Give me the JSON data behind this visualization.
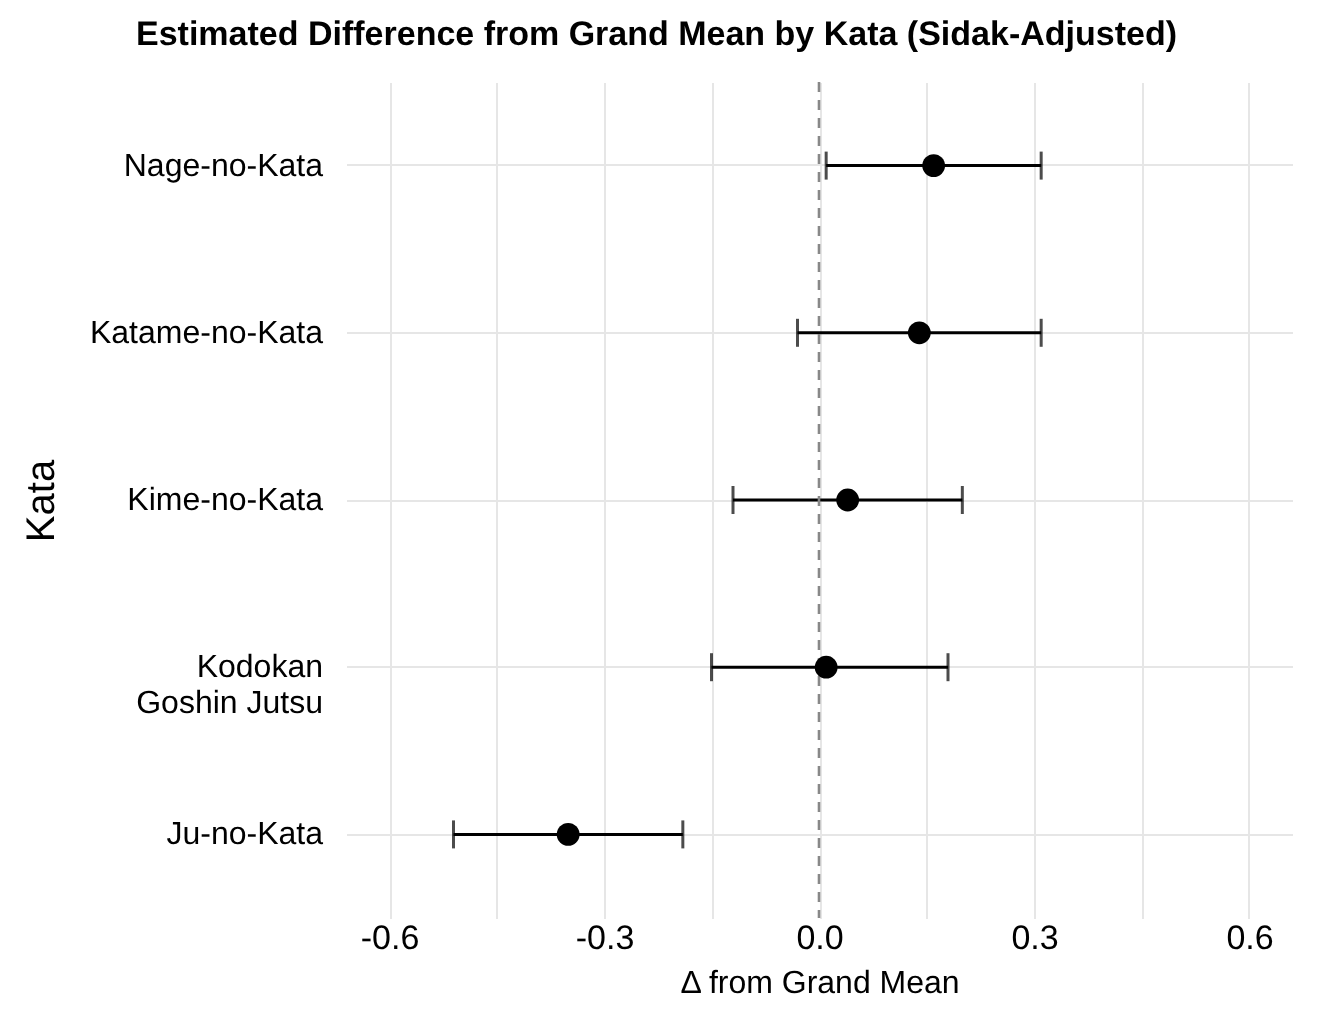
{
  "chart_data": {
    "type": "scatter",
    "title": "Estimated Difference from Grand Mean by Kata (Sidak-Adjusted)",
    "xlabel": "Δ from Grand Mean",
    "ylabel": "Kata",
    "orientation": "horizontal",
    "categories": [
      "Nage-no-Kata",
      "Katame-no-Kata",
      "Kime-no-Kata",
      "Kodokan Goshin Jutsu",
      "Ju-no-Kata"
    ],
    "series": [
      {
        "color": "#000000",
        "values": [
          0.16,
          0.14,
          0.04,
          0.01,
          -0.35
        ],
        "errors": [
          [
            0.01,
            0.31
          ],
          [
            -0.03,
            0.31
          ],
          [
            -0.12,
            0.2
          ],
          [
            -0.15,
            0.18
          ],
          [
            -0.51,
            -0.19
          ]
        ]
      }
    ],
    "xlim": [
      -0.66,
      0.66
    ],
    "xticks": [
      -0.6,
      {
        "value": -0.45,
        "label": null
      },
      -0.3,
      {
        "value": -0.15,
        "label": null
      },
      {
        "value": 0,
        "label": "0.0"
      },
      {
        "value": 0.15,
        "label": null
      },
      0.3,
      {
        "value": 0.45,
        "label": null
      },
      0.6
    ],
    "grid": true,
    "marker": "circle",
    "ref_lines": [
      {
        "axis": "x",
        "value": 0,
        "line_style": "dashed",
        "color": "#888888"
      }
    ]
  }
}
